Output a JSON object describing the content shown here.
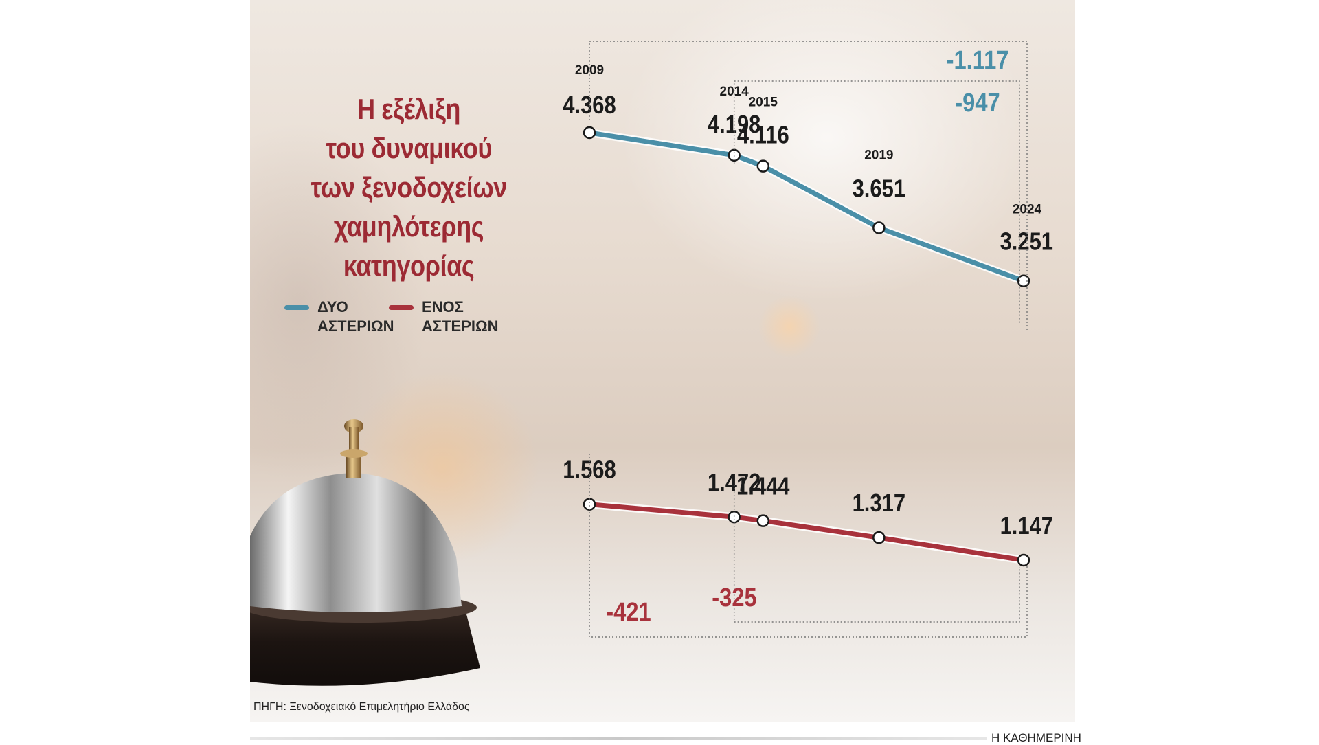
{
  "title_lines": [
    "Η εξέλιξη",
    "του δυναμικού",
    "των ξενοδοχείων",
    "χαμηλότερης",
    "κατηγορίας"
  ],
  "legend": [
    {
      "line1": "ΔΥΟ",
      "line2": "ΑΣΤΕΡΙΩΝ",
      "color": "#4a8fa8"
    },
    {
      "line1": "ΕΝΟΣ",
      "line2": "ΑΣΤΕΡΙΩΝ",
      "color": "#a8323c"
    }
  ],
  "source": "ΠΗΓΗ: Ξενοδοχειακό Επιμελητήριο Ελλάδος",
  "publisher": "Η ΚΑΘΗΜΕΡΙΝΗ",
  "chart_data": {
    "type": "line",
    "x": [
      "2009",
      "2014",
      "2015",
      "2019",
      "2024"
    ],
    "series": [
      {
        "name": "ΔΥΟ ΑΣΤΕΡΙΩΝ",
        "color": "#4a8fa8",
        "values": [
          4368,
          4198,
          4116,
          3651,
          3251
        ],
        "labels": [
          "4.368",
          "4.198",
          "4.116",
          "3.651",
          "3.251"
        ]
      },
      {
        "name": "ΕΝΟΣ ΑΣΤΕΡΙΩΝ",
        "color": "#a8323c",
        "values": [
          1568,
          1472,
          1444,
          1317,
          1147
        ],
        "labels": [
          "1.568",
          "1.472",
          "1.444",
          "1.317",
          "1.147"
        ]
      }
    ],
    "differences": [
      {
        "series": 0,
        "from": "2009",
        "to": "2024",
        "label": "-1.117"
      },
      {
        "series": 0,
        "from": "2014",
        "to": "2024",
        "label": "-947"
      },
      {
        "series": 1,
        "from": "2009",
        "to": "2024",
        "label": "-421"
      },
      {
        "series": 1,
        "from": "2014",
        "to": "2024",
        "label": "-325"
      }
    ],
    "grid": false,
    "legend_position": "left"
  }
}
